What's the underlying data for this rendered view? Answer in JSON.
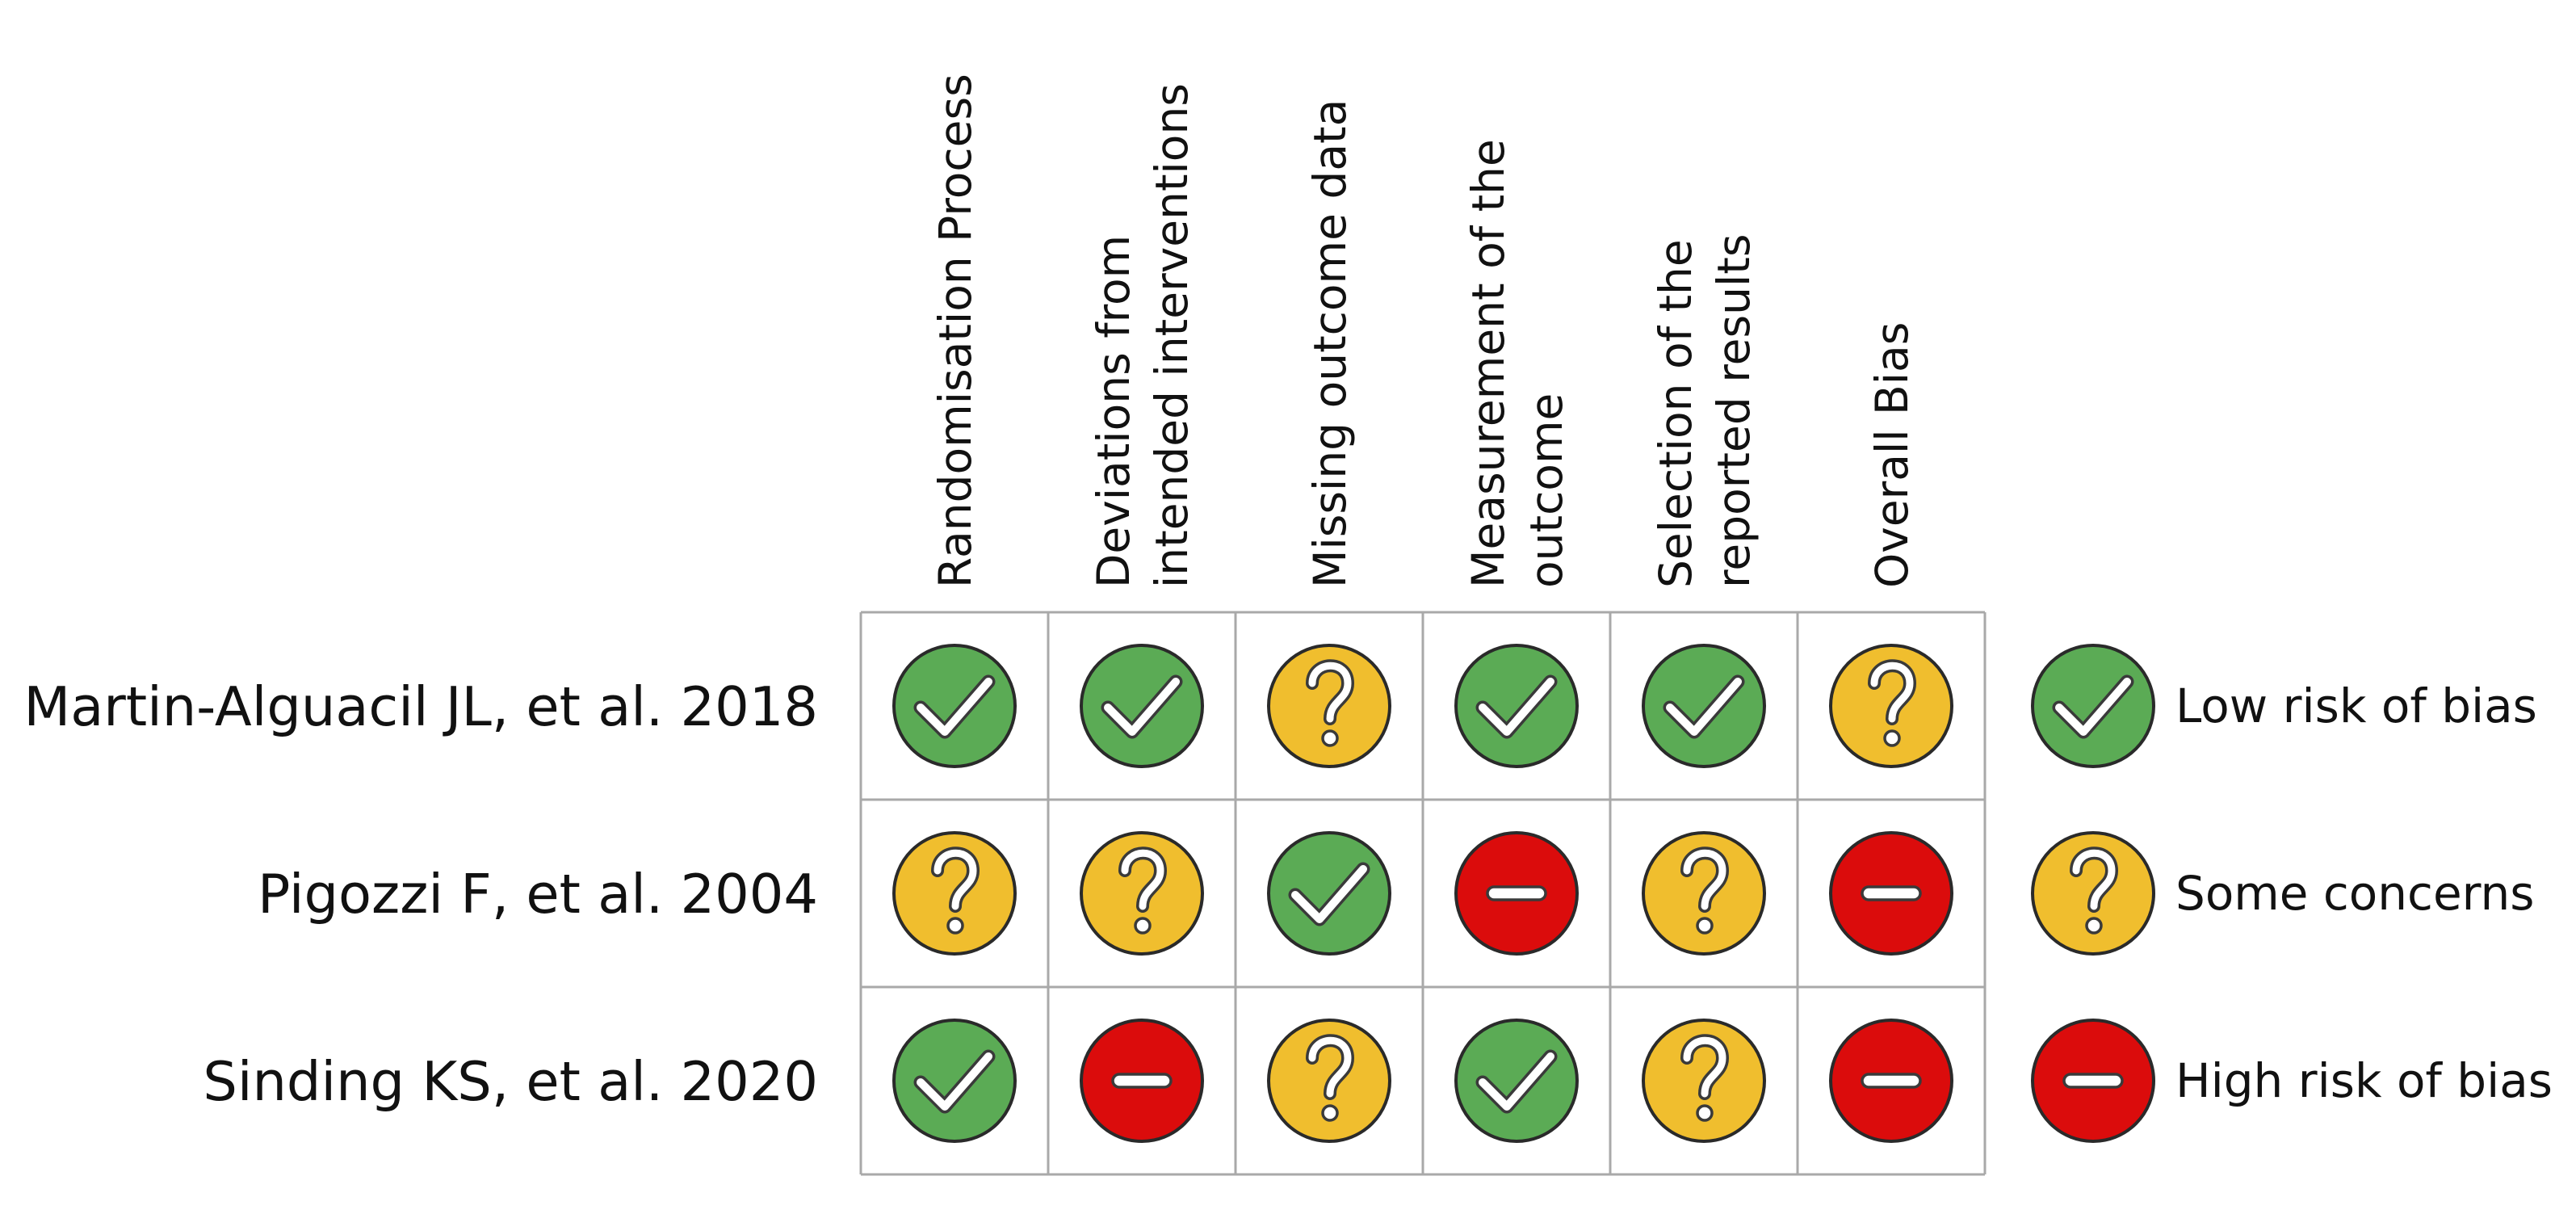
{
  "chart_data": {
    "type": "table",
    "title": "",
    "domains": [
      [
        "Randomisation Process"
      ],
      [
        "Deviations from",
        "intended interventions"
      ],
      [
        "Missing outcome data"
      ],
      [
        "Measurement of the",
        "outcome"
      ],
      [
        "Selection of the",
        "reported results"
      ],
      [
        "Overall Bias"
      ]
    ],
    "studies": [
      {
        "name": "Martin-Alguacil JL, et al. 2018",
        "ratings": [
          "low",
          "low",
          "some",
          "low",
          "low",
          "some"
        ]
      },
      {
        "name": "Pigozzi F, et al. 2004",
        "ratings": [
          "some",
          "some",
          "low",
          "high",
          "some",
          "high"
        ]
      },
      {
        "name": "Sinding KS, et al. 2020",
        "ratings": [
          "low",
          "high",
          "some",
          "low",
          "some",
          "high"
        ]
      }
    ],
    "legend": [
      {
        "key": "low",
        "label": "Low risk of bias",
        "symbol": "check-icon"
      },
      {
        "key": "some",
        "label": "Some concerns",
        "symbol": "question-icon"
      },
      {
        "key": "high",
        "label": "High risk of bias",
        "symbol": "minus-icon"
      }
    ],
    "legend_position": "right"
  },
  "colors": {
    "low": "#5bab55",
    "some": "#f0be2e",
    "high": "#db0c0c",
    "grid": "#a9a9a9",
    "outline": "#2a2a2a"
  }
}
